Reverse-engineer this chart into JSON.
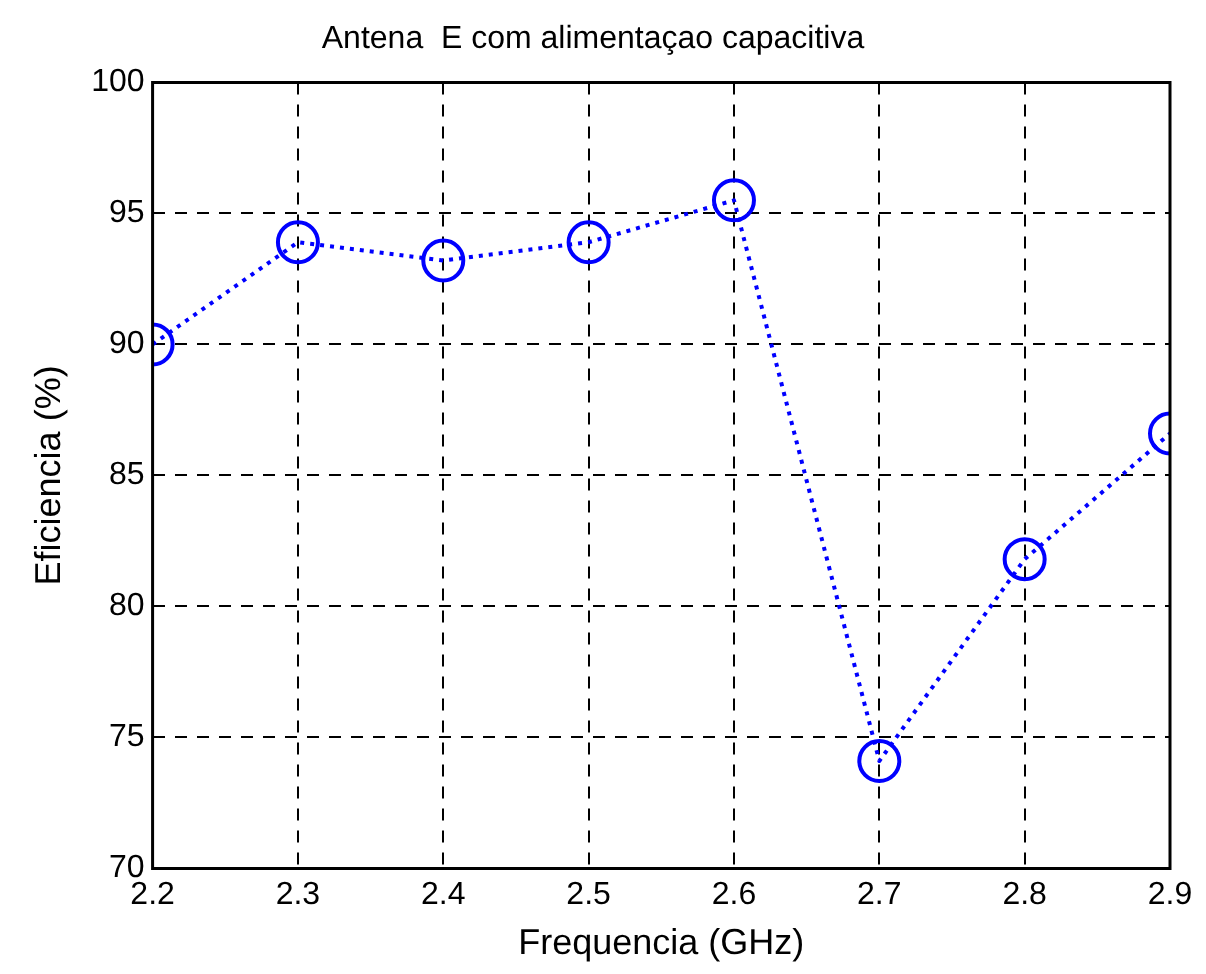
{
  "chart_data": {
    "type": "line",
    "title": "Antena  E com alimentaçao capacitiva",
    "xlabel": "Frequencia (GHz)",
    "ylabel": "Eficiencia (%)",
    "x": [
      2.2,
      2.3,
      2.4,
      2.5,
      2.6,
      2.7,
      2.8,
      2.9
    ],
    "series": [
      {
        "color": "#0000ff",
        "values": [
          90,
          93.9,
          93.2,
          93.9,
          95.5,
          74.1,
          81.8,
          86.6
        ]
      }
    ],
    "xlim": [
      2.2,
      2.9
    ],
    "xticks": [
      2.2,
      2.3,
      2.4,
      2.5,
      2.6,
      2.7,
      2.8,
      2.9
    ],
    "ylim": [
      70,
      100
    ],
    "yticks": [
      70,
      75,
      80,
      85,
      90,
      95,
      100
    ],
    "grid": true,
    "legend": false,
    "marker": "circle",
    "line_style": "dotted"
  }
}
